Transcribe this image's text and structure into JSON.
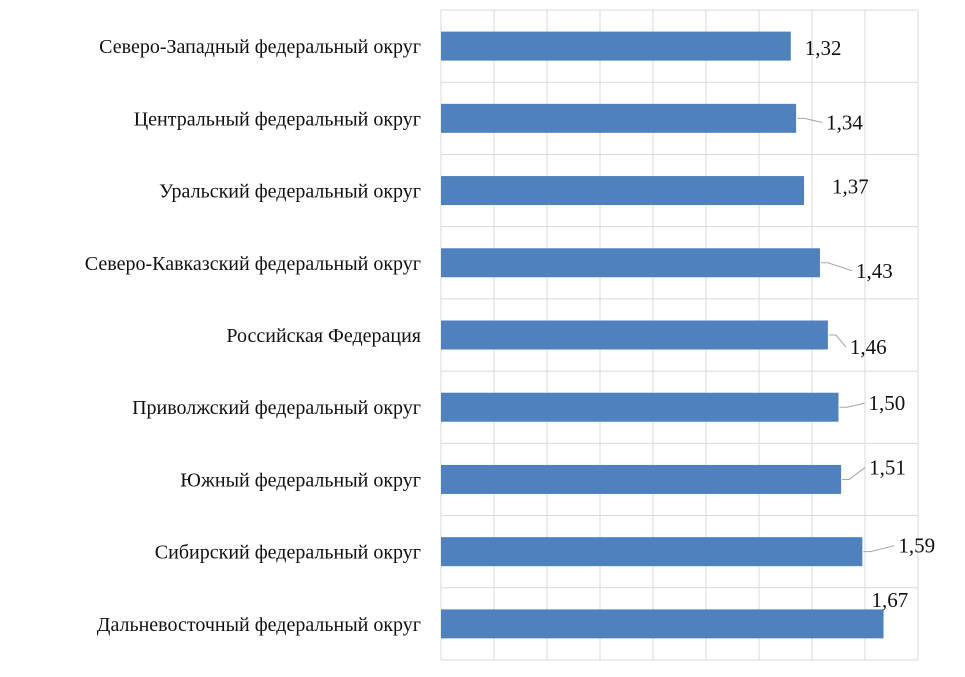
{
  "chart_data": {
    "type": "bar",
    "orientation": "horizontal",
    "title": "",
    "xlabel": "",
    "ylabel": "",
    "categories": [
      "Северо-Западный федеральный округ",
      "Центральный федеральный округ",
      "Уральский федеральный округ",
      "Северо-Кавказский федеральный округ",
      "Российская Федерация",
      "Приволжский федеральный округ",
      "Южный федеральный округ",
      "Сибирский федеральный округ",
      "Дальневосточный федеральный округ"
    ],
    "values": [
      1.32,
      1.34,
      1.37,
      1.43,
      1.46,
      1.5,
      1.51,
      1.59,
      1.67
    ],
    "value_labels": [
      "1,32",
      "1,34",
      "1,37",
      "1,43",
      "1,46",
      "1,50",
      "1,51",
      "1,59",
      "1,67"
    ],
    "xlim": [
      0,
      1.8
    ],
    "x_grid_step": 0.2,
    "grid": true,
    "bar_color": "#4f81bd",
    "grid_color": "#d9d9d9"
  }
}
